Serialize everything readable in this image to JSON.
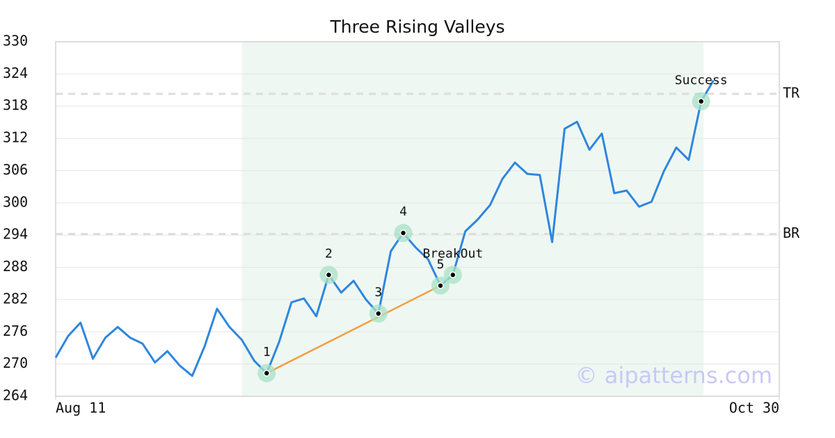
{
  "chart_data": {
    "type": "line",
    "title": "Three Rising Valleys",
    "x": [
      0,
      1,
      2,
      3,
      4,
      5,
      6,
      7,
      8,
      9,
      10,
      11,
      12,
      13,
      14,
      15,
      16,
      17,
      18,
      19,
      20,
      21,
      22,
      23,
      24,
      25,
      26,
      27,
      28,
      29,
      30,
      31,
      32,
      33,
      34,
      35,
      36,
      37,
      38,
      39,
      40,
      41,
      42,
      43,
      44,
      45,
      46,
      47,
      48,
      49,
      50,
      51,
      52,
      53
    ],
    "series": [
      {
        "name": "Price",
        "color": "#2e86de",
        "values": [
          271.2,
          275.2,
          277.7,
          271.0,
          274.9,
          276.9,
          274.9,
          273.8,
          270.3,
          272.4,
          269.7,
          267.8,
          273.3,
          280.3,
          276.9,
          274.5,
          270.6,
          268.3,
          274.1,
          281.5,
          282.2,
          278.9,
          286.6,
          283.3,
          285.5,
          282.0,
          279.4,
          291.0,
          294.4,
          291.7,
          289.5,
          284.6,
          286.6,
          294.7,
          296.9,
          299.6,
          304.5,
          307.5,
          305.4,
          305.2,
          292.7,
          313.8,
          315.1,
          309.9,
          312.9,
          301.8,
          302.3,
          299.3,
          300.2,
          305.9,
          310.3,
          308.0,
          318.9,
          322.8
        ]
      }
    ],
    "xlim": [
      0,
      58.3
    ],
    "xticks": [
      {
        "value": 0,
        "label": "Aug 11"
      },
      {
        "value": 58.3,
        "label": "Oct 30"
      }
    ],
    "ylim": [
      264,
      330
    ],
    "yticks": [
      264,
      270,
      276,
      282,
      288,
      294,
      300,
      306,
      312,
      318,
      324,
      330
    ],
    "grid": true,
    "highlight": {
      "x": [
        15,
        52.2
      ],
      "color": "#eef7f2"
    },
    "levels": [
      {
        "label": "TR",
        "value": 320.3
      },
      {
        "label": "BR",
        "value": 294.2
      }
    ],
    "trend_line": {
      "x": [
        17,
        31
      ],
      "y": [
        268.3,
        284.6
      ],
      "color": "#f39c3d"
    },
    "annotations": [
      {
        "label": "1",
        "x": 17,
        "y": 268.3
      },
      {
        "label": "2",
        "x": 22,
        "y": 286.6
      },
      {
        "label": "3",
        "x": 26,
        "y": 279.4
      },
      {
        "label": "4",
        "x": 28,
        "y": 294.4
      },
      {
        "label": "5",
        "x": 31,
        "y": 284.6
      },
      {
        "label": "BreakOut",
        "x": 32,
        "y": 286.6
      },
      {
        "label": "Success",
        "x": 52,
        "y": 318.9
      }
    ],
    "watermark": "© aipatterns.com"
  }
}
